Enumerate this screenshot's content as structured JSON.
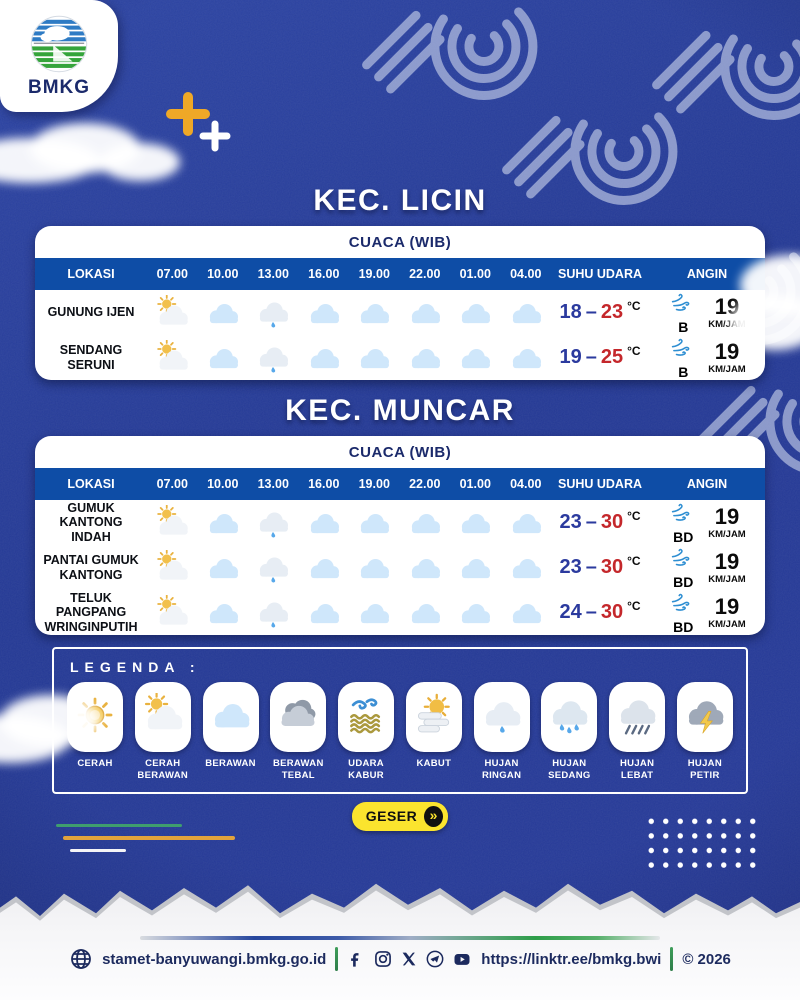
{
  "brand": {
    "name": "BMKG"
  },
  "sections": [
    {
      "title": "KEC. LICIN",
      "table": {
        "caption": "CUACA (WIB)",
        "columns": [
          "LOKASI",
          "07.00",
          "10.00",
          "13.00",
          "16.00",
          "19.00",
          "22.00",
          "01.00",
          "04.00",
          "SUHU UDARA",
          "ANGIN"
        ],
        "rows": [
          {
            "location": "GUNUNG IJEN",
            "icons": [
              "cerah-berawan",
              "berawan",
              "hujan-ringan",
              "berawan",
              "berawan",
              "berawan",
              "berawan",
              "berawan"
            ],
            "temp_min": "18",
            "temp_max": "23",
            "temp_unit": "°C",
            "wind_dir": "B",
            "wind_speed": "19",
            "wind_unit": "KM/JAM"
          },
          {
            "location": "SENDANG SERUNI",
            "icons": [
              "cerah-berawan",
              "berawan",
              "hujan-ringan",
              "berawan",
              "berawan",
              "berawan",
              "berawan",
              "berawan"
            ],
            "temp_min": "19",
            "temp_max": "25",
            "temp_unit": "°C",
            "wind_dir": "B",
            "wind_speed": "19",
            "wind_unit": "KM/JAM"
          }
        ]
      }
    },
    {
      "title": "KEC. MUNCAR",
      "table": {
        "caption": "CUACA (WIB)",
        "columns": [
          "LOKASI",
          "07.00",
          "10.00",
          "13.00",
          "16.00",
          "19.00",
          "22.00",
          "01.00",
          "04.00",
          "SUHU UDARA",
          "ANGIN"
        ],
        "rows": [
          {
            "location": "GUMUK KANTONG INDAH",
            "icons": [
              "cerah-berawan",
              "berawan",
              "hujan-ringan",
              "berawan",
              "berawan",
              "berawan",
              "berawan",
              "berawan"
            ],
            "temp_min": "23",
            "temp_max": "30",
            "temp_unit": "°C",
            "wind_dir": "BD",
            "wind_speed": "19",
            "wind_unit": "KM/JAM"
          },
          {
            "location": "PANTAI GUMUK KANTONG",
            "icons": [
              "cerah-berawan",
              "berawan",
              "hujan-ringan",
              "berawan",
              "berawan",
              "berawan",
              "berawan",
              "berawan"
            ],
            "temp_min": "23",
            "temp_max": "30",
            "temp_unit": "°C",
            "wind_dir": "BD",
            "wind_speed": "19",
            "wind_unit": "KM/JAM"
          },
          {
            "location": "TELUK PANGPANG WRINGINPUTIH",
            "icons": [
              "cerah-berawan",
              "berawan",
              "hujan-ringan",
              "berawan",
              "berawan",
              "berawan",
              "berawan",
              "berawan"
            ],
            "temp_min": "24",
            "temp_max": "30",
            "temp_unit": "°C",
            "wind_dir": "BD",
            "wind_speed": "19",
            "wind_unit": "KM/JAM"
          }
        ]
      }
    }
  ],
  "ui": {
    "temp_dash": "–",
    "wind_icon": "angin"
  },
  "legend": {
    "label": "LEGENDA :",
    "items": [
      {
        "icon": "cerah",
        "label": "CERAH"
      },
      {
        "icon": "cerah-berawan",
        "label": "CERAH BERAWAN"
      },
      {
        "icon": "berawan",
        "label": "BERAWAN"
      },
      {
        "icon": "berawan-tebal",
        "label": "BERAWAN TEBAL"
      },
      {
        "icon": "udara-kabur",
        "label": "UDARA KABUR"
      },
      {
        "icon": "kabut",
        "label": "KABUT"
      },
      {
        "icon": "hujan-ringan",
        "label": "HUJAN RINGAN"
      },
      {
        "icon": "hujan-sedang",
        "label": "HUJAN SEDANG"
      },
      {
        "icon": "hujan-lebat",
        "label": "HUJAN LEBAT"
      },
      {
        "icon": "hujan-petir",
        "label": "HUJAN PETIR"
      }
    ]
  },
  "geser": {
    "label": "GESER",
    "arrow": "»"
  },
  "footer": {
    "website": "stamet-banyuwangi.bmkg.go.id",
    "social": [
      "facebook",
      "instagram",
      "x",
      "telegram",
      "youtube"
    ],
    "link": "https://linktr.ee/bmkg.bwi",
    "copyright": "© 2026"
  },
  "colors": {
    "background": "#24399a",
    "table_header_blue": "#0e4da6",
    "caption_navy": "#1b2a6b",
    "temp_min": "#2b3a9e",
    "temp_max": "#c4272b",
    "wind_icon_blue": "#2f8fd2",
    "geser_yellow": "#fbe42e",
    "plus_orange": "#efa827",
    "line_green": "#3f9e6e",
    "line_yellow": "#e2a33c",
    "footer_navy": "#1c2a5e"
  }
}
